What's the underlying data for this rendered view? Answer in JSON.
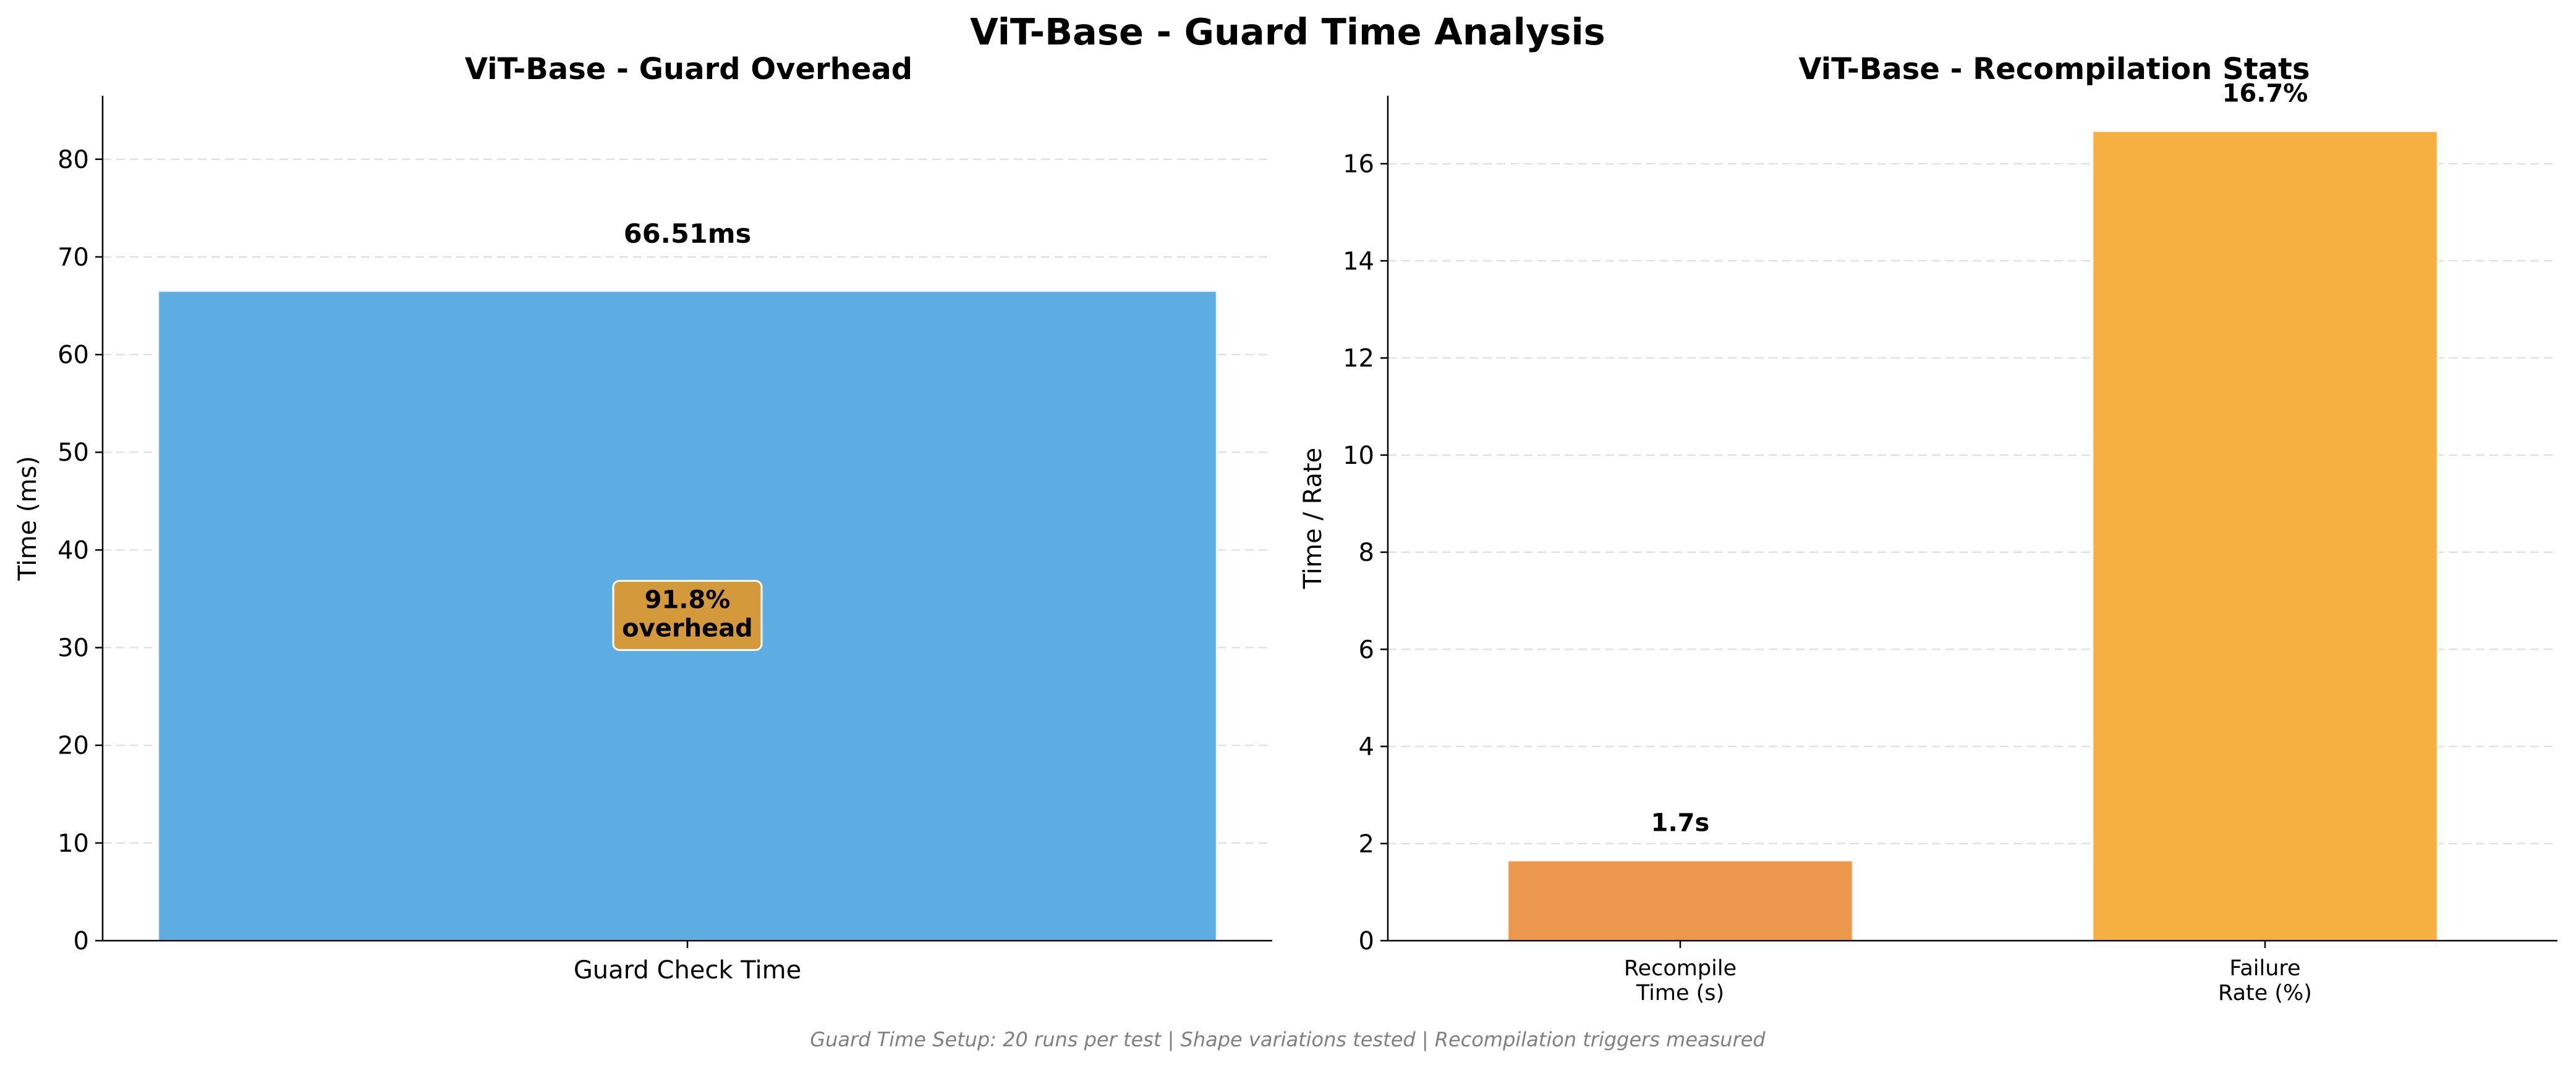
{
  "figure": {
    "title": "ViT-Base - Guard Time Analysis",
    "footnote": "Guard Time Setup: 20 runs per test | Shape variations tested | Recompilation triggers measured"
  },
  "chart_data": [
    {
      "type": "bar",
      "title": "ViT-Base - Guard Overhead",
      "xlabel": "",
      "ylabel": "Time (ms)",
      "categories": [
        "Guard Check Time"
      ],
      "category_lines": [
        [
          "Guard Check Time"
        ]
      ],
      "values": [
        66.51
      ],
      "value_labels": [
        "66.51ms"
      ],
      "colors": [
        "#5dade2"
      ],
      "ylim": [
        0,
        86.5
      ],
      "yticks": [
        0,
        10,
        20,
        30,
        40,
        50,
        60,
        70,
        80
      ],
      "grid": true,
      "annotation": {
        "lines": [
          "91.8%",
          "overhead"
        ],
        "y": 33.3,
        "color": "#d4993a"
      }
    },
    {
      "type": "bar",
      "title": "ViT-Base - Recompilation Stats",
      "xlabel": "",
      "ylabel": "Time / Rate",
      "categories": [
        "Recompile Time (s)",
        "Failure Rate (%)"
      ],
      "category_lines": [
        [
          "Recompile",
          "Time (s)"
        ],
        [
          "Failure",
          "Rate (%)"
        ]
      ],
      "values": [
        1.65,
        16.67
      ],
      "value_labels": [
        "1.7s",
        "16.7%"
      ],
      "colors": [
        "#eb984e",
        "#f5b041"
      ],
      "ylim": [
        0,
        17.4
      ],
      "yticks": [
        0,
        2,
        4,
        6,
        8,
        10,
        12,
        14,
        16
      ],
      "grid": true
    }
  ]
}
